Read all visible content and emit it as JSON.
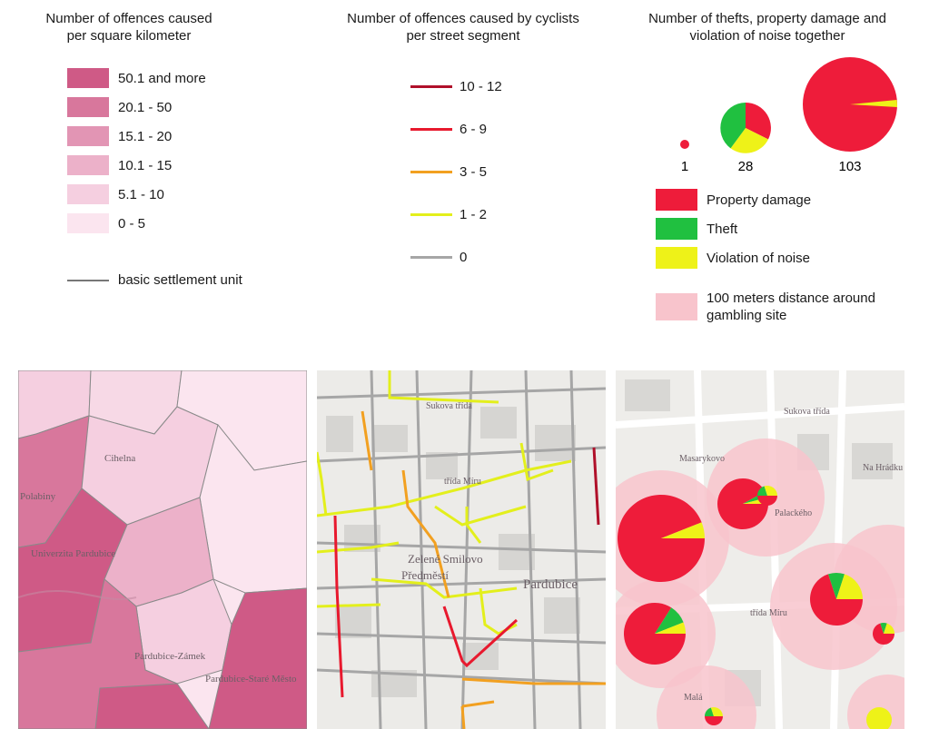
{
  "legend_density": {
    "title": "Number of offences caused\nper square kilometer",
    "classes": [
      {
        "label": "50.1 and more",
        "color": "#cf5a86"
      },
      {
        "label": "20.1 - 50",
        "color": "#d8779c"
      },
      {
        "label": "15.1 - 20",
        "color": "#e295b4"
      },
      {
        "label": "10.1 - 15",
        "color": "#ecb1c9"
      },
      {
        "label": "5.1 - 10",
        "color": "#f5cfe0"
      },
      {
        "label": "0 - 5",
        "color": "#fbe5ef"
      }
    ],
    "boundary": {
      "label": "basic settlement unit",
      "color": "#777777"
    }
  },
  "legend_cyclists": {
    "title": "Number of offences caused by cyclists\nper street segment",
    "classes": [
      {
        "label": "10 - 12",
        "color": "#b0102a"
      },
      {
        "label": "6 - 9",
        "color": "#e8192e"
      },
      {
        "label": "3 - 5",
        "color": "#f2a020"
      },
      {
        "label": "1 - 2",
        "color": "#e3ef1c"
      },
      {
        "label": "0",
        "color": "#a6a6a6"
      }
    ]
  },
  "legend_pies": {
    "title": "Number of thefts, property damage and\nviolation of noise together",
    "sizes": [
      "1",
      "28",
      "103"
    ],
    "categories": [
      {
        "label": "Property damage",
        "color": "#ee1c3a"
      },
      {
        "label": "Theft",
        "color": "#20c040"
      },
      {
        "label": "Violation of noise",
        "color": "#eef218"
      }
    ],
    "buffer": {
      "label": "100 meters distance around\ngambling site",
      "color": "#f8c4cc"
    }
  },
  "map_density": {
    "labels": [
      "Cihelna",
      "Polabiny",
      "Univerzita Pardubice",
      "Pardubice-Zámek",
      "Pardubice-Staré\nMěsto"
    ]
  },
  "map_cyclists": {
    "labels": [
      "Sukova třída",
      "třída Míru",
      "Zelené Smilovo",
      "Předměstí",
      "Pardubice"
    ]
  },
  "map_gambling": {
    "labels": [
      "Sukova třída",
      "Masarykovo",
      "Palackého",
      "třída Míru",
      "Na Hrádku",
      "Malá"
    ]
  }
}
